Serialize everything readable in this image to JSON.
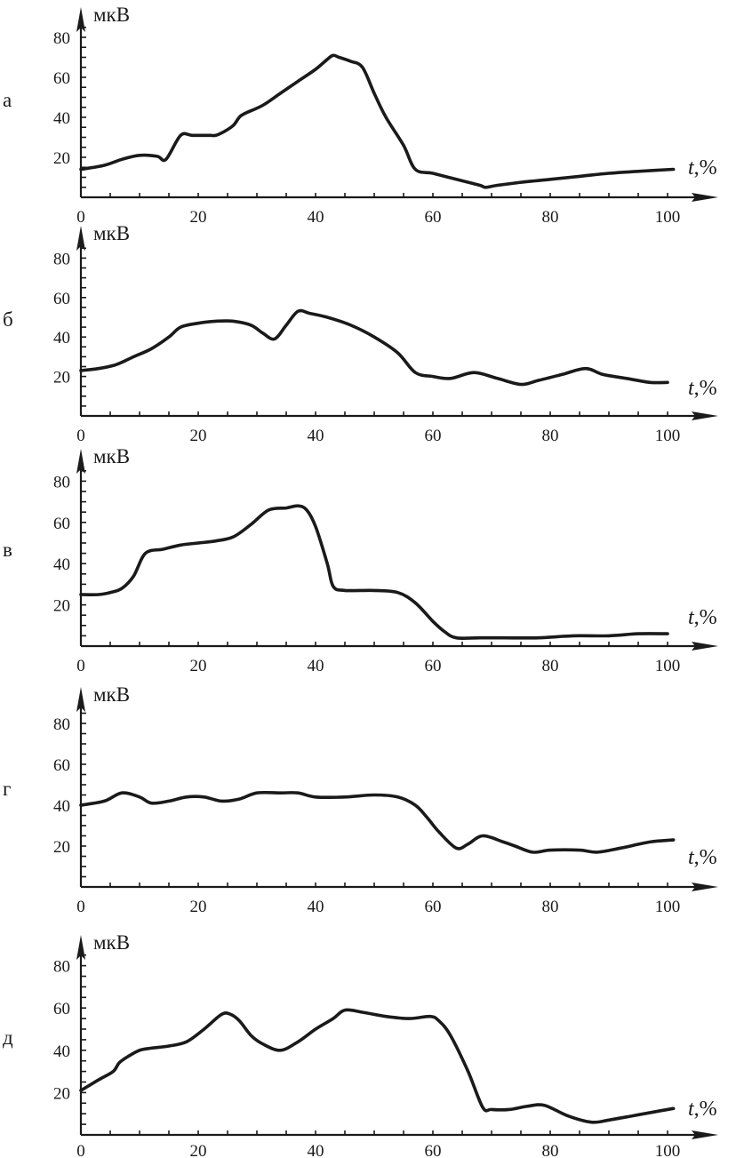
{
  "chart_data": [
    {
      "type": "line",
      "panel_label": "а",
      "y_unit": "мкВ",
      "x_unit_var": "t",
      "x_unit_rest": ",%",
      "x_ticks": [
        "0",
        "20",
        "40",
        "60",
        "80",
        "100"
      ],
      "y_ticks": [
        "20",
        "40",
        "60",
        "80"
      ],
      "xlim": [
        0,
        100
      ],
      "ylim": [
        0,
        80
      ],
      "grid": false,
      "series": [
        {
          "x": [
            0,
            4,
            7,
            10,
            13,
            14.5,
            17,
            19,
            22,
            23,
            24.5,
            26,
            27,
            28,
            31,
            34,
            37,
            40,
            42,
            43,
            44,
            46,
            48,
            50,
            52,
            55,
            57,
            60,
            64,
            68,
            69,
            71,
            75,
            80,
            85,
            90,
            95,
            101
          ],
          "y": [
            14,
            16,
            19,
            21,
            20.5,
            19,
            31,
            31,
            31,
            31,
            33,
            36,
            40,
            42,
            46,
            52,
            58,
            64,
            69,
            71,
            70,
            68,
            65,
            52,
            40,
            26,
            14,
            12,
            9,
            6,
            5,
            6,
            7.5,
            9,
            10.5,
            12,
            13,
            14
          ]
        }
      ]
    },
    {
      "type": "line",
      "panel_label": "б",
      "y_unit": "мкВ",
      "x_unit_var": "t",
      "x_unit_rest": ",%",
      "x_ticks": [
        "0",
        "20",
        "40",
        "60",
        "80",
        "100"
      ],
      "y_ticks": [
        "20",
        "40",
        "60",
        "80"
      ],
      "xlim": [
        0,
        100
      ],
      "ylim": [
        0,
        80
      ],
      "grid": false,
      "series": [
        {
          "x": [
            0,
            3,
            6,
            9,
            12,
            15,
            17,
            20,
            23,
            26,
            29,
            31,
            33,
            35,
            37,
            39,
            42,
            46,
            50,
            54,
            57,
            60,
            63,
            67,
            71,
            75,
            78,
            82,
            86,
            89,
            93,
            97,
            100
          ],
          "y": [
            23,
            24,
            26,
            30,
            34,
            40,
            45,
            47,
            48,
            48,
            46,
            42,
            39,
            46,
            53,
            52,
            50,
            46,
            40,
            32,
            22,
            20,
            19,
            22,
            19,
            16,
            18,
            21,
            24,
            21,
            19,
            17,
            17
          ]
        }
      ]
    },
    {
      "type": "line",
      "panel_label": "в",
      "y_unit": "мкВ",
      "x_unit_var": "t",
      "x_unit_rest": ",%",
      "x_ticks": [
        "0",
        "20",
        "40",
        "60",
        "80",
        "100"
      ],
      "y_ticks": [
        "20",
        "40",
        "60",
        "80"
      ],
      "xlim": [
        0,
        100
      ],
      "ylim": [
        0,
        80
      ],
      "grid": false,
      "series": [
        {
          "x": [
            0,
            3,
            5,
            7,
            9,
            11,
            14,
            17,
            20,
            23,
            26,
            29,
            32,
            35,
            37,
            38.5,
            40,
            42,
            43,
            45,
            50,
            54,
            57,
            60,
            62,
            64,
            68,
            72,
            78,
            84,
            90,
            95,
            100
          ],
          "y": [
            25,
            25,
            26,
            28,
            34,
            45,
            47,
            49,
            50,
            51,
            53,
            59,
            66,
            67,
            68,
            66,
            58,
            40,
            29,
            27,
            27,
            26,
            21,
            12,
            7,
            4,
            4,
            4,
            4,
            5,
            5,
            6,
            6
          ]
        }
      ]
    },
    {
      "type": "line",
      "panel_label": "г",
      "y_unit": "мкВ",
      "x_unit_var": "t",
      "x_unit_rest": ",%",
      "x_ticks": [
        "0",
        "20",
        "40",
        "60",
        "80",
        "100"
      ],
      "y_ticks": [
        "20",
        "40",
        "60",
        "80"
      ],
      "xlim": [
        0,
        100
      ],
      "ylim": [
        0,
        80
      ],
      "grid": false,
      "series": [
        {
          "x": [
            0,
            4,
            7,
            10,
            12,
            15,
            18,
            21,
            24,
            27,
            30,
            34,
            37,
            40,
            45,
            50,
            54,
            57,
            59,
            61,
            64,
            66,
            68.5,
            72,
            74,
            77,
            80,
            85,
            88,
            92,
            97,
            101
          ],
          "y": [
            40,
            42,
            46,
            44,
            41,
            42,
            44,
            44,
            42,
            43,
            46,
            46,
            46,
            44,
            44,
            45,
            44,
            40,
            34,
            27,
            19,
            21,
            25,
            22,
            20,
            17,
            18,
            18,
            17,
            19,
            22,
            23
          ]
        }
      ]
    },
    {
      "type": "line",
      "panel_label": "д",
      "y_unit": "мкВ",
      "x_unit_var": "t",
      "x_unit_rest": ",%",
      "x_ticks": [
        "0",
        "20",
        "40",
        "60",
        "80",
        "100"
      ],
      "y_ticks": [
        "20",
        "40",
        "60",
        "80"
      ],
      "xlim": [
        0,
        100
      ],
      "ylim": [
        0,
        80
      ],
      "grid": false,
      "series": [
        {
          "x": [
            0,
            3,
            5.5,
            6.5,
            8,
            10,
            12,
            15,
            18,
            21,
            24,
            25.5,
            27,
            29,
            31,
            34,
            37,
            40,
            43,
            45,
            48,
            52,
            56,
            59.5,
            61,
            63,
            66,
            68.5,
            70,
            73,
            76,
            79,
            83,
            87,
            90,
            94,
            98,
            101
          ],
          "y": [
            21,
            26,
            30,
            34,
            37,
            40,
            41,
            42,
            44,
            50,
            57,
            57,
            54,
            47,
            43,
            40,
            44,
            50,
            55,
            59,
            58,
            56,
            55,
            56,
            54,
            47,
            30,
            13,
            12,
            12,
            13.5,
            14,
            9,
            6,
            7,
            9,
            11,
            12.5
          ]
        }
      ]
    }
  ]
}
